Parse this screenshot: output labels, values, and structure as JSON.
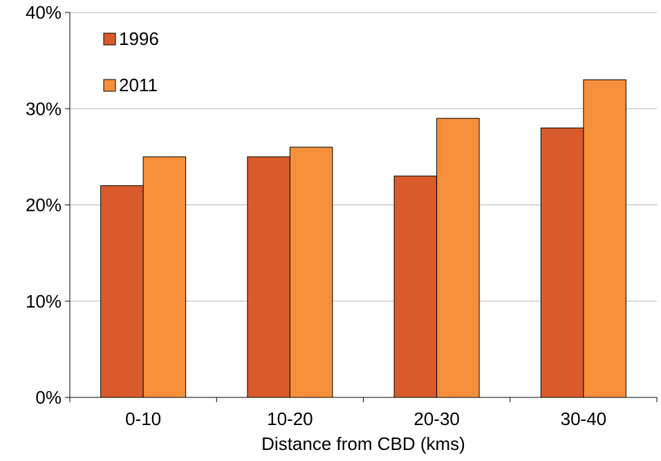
{
  "chart_data": {
    "type": "bar",
    "categories": [
      "0-10",
      "10-20",
      "20-30",
      "30-40"
    ],
    "series": [
      {
        "name": "1996",
        "values": [
          22,
          25,
          23,
          28
        ],
        "color": "#d95b2b"
      },
      {
        "name": "2011",
        "values": [
          25,
          26,
          29,
          33
        ],
        "color": "#f68f3a"
      }
    ],
    "title": "",
    "xlabel": "Distance from CBD (kms)",
    "ylabel": "",
    "ylim": [
      0,
      40
    ],
    "yticks": [
      0,
      10,
      20,
      30,
      40
    ],
    "ytick_labels": [
      "0%",
      "10%",
      "20%",
      "30%",
      "40%"
    ],
    "y_unit": "%",
    "grid": true,
    "legend_position": "top-left"
  }
}
